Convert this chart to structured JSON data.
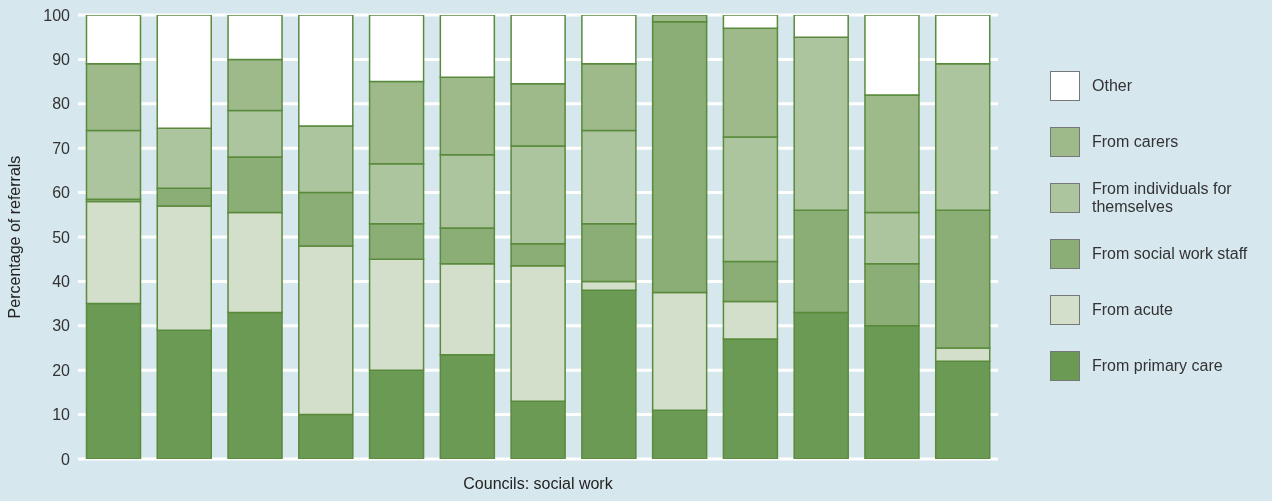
{
  "chart_data": {
    "type": "bar",
    "stacked": true,
    "xlabel": "Councils: social work",
    "ylabel": "Percentage of referrals",
    "categories": [
      null,
      null,
      null,
      null,
      null,
      null,
      null,
      null,
      null,
      null,
      null,
      null,
      null
    ],
    "series": [
      {
        "name": "From primary care",
        "color": "#6b9a55",
        "values": [
          35,
          29,
          33,
          10,
          20,
          23.5,
          13,
          38,
          11,
          27,
          33,
          30,
          22
        ]
      },
      {
        "name": "From acute",
        "color": "#d3dfcb",
        "values": [
          23,
          28,
          22.5,
          38,
          25,
          20.5,
          30.5,
          2,
          26.5,
          8.5,
          0,
          0,
          3
        ]
      },
      {
        "name": "From social work staff",
        "color": "#8bae76",
        "values": [
          0.5,
          4,
          12.5,
          12,
          8,
          8,
          5,
          13,
          61,
          9,
          23,
          14,
          31
        ]
      },
      {
        "name": "From individuals for themselves",
        "color": "#adc59e",
        "values": [
          15.5,
          13.5,
          10.5,
          15,
          13.5,
          16.5,
          22,
          21,
          0,
          28,
          39,
          11.5,
          33
        ]
      },
      {
        "name": "From carers",
        "color": "#9eb98a",
        "values": [
          15,
          0,
          11.5,
          0,
          18.5,
          17.5,
          14,
          15,
          1.5,
          24.5,
          0,
          26.5,
          0
        ]
      },
      {
        "name": "Other",
        "color": "#ffffff",
        "values": [
          11,
          25.5,
          10,
          25,
          15,
          14,
          15.5,
          11,
          0,
          3,
          5,
          18,
          11
        ]
      }
    ],
    "ylim": [
      0,
      100
    ],
    "yticks": [
      0,
      10,
      20,
      30,
      40,
      50,
      60,
      70,
      80,
      90,
      100
    ],
    "grid": "y",
    "legend": "right"
  }
}
